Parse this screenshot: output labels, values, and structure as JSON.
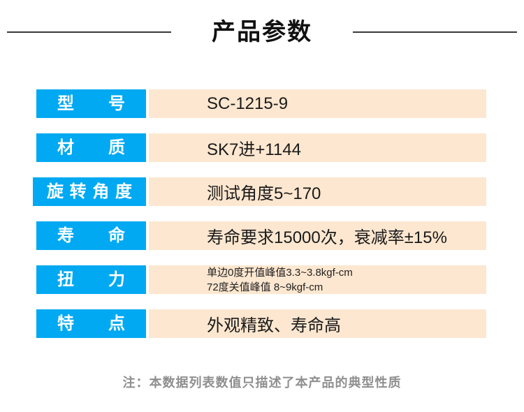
{
  "title": "产品参数",
  "colors": {
    "label_bg": "#00a9f2",
    "label_text": "#ffffff",
    "value_bg": "#fde7d0",
    "value_text": "#1a1a1a",
    "title_text": "#111111",
    "divider_line": "#3a3a3a",
    "note_text": "#8f8f8f",
    "background": "#ffffff"
  },
  "parameters": [
    {
      "label": "型号",
      "value": "SC-1215-9"
    },
    {
      "label": "材质",
      "value": "SK7进+1144"
    },
    {
      "label": "旋转角度",
      "value": "测试角度5~170"
    },
    {
      "label": "寿命",
      "value": "寿命要求15000次，衰减率±15%"
    },
    {
      "label": "扭力",
      "lines": [
        "单边0度开值峰值3.3~3.8kgf-cm",
        "72度关值峰值 8~9kgf-cm"
      ]
    },
    {
      "label": "特点",
      "value": "外观精致、寿命高"
    }
  ],
  "note": "注：本数据列表数值只描述了本产品的典型性质"
}
